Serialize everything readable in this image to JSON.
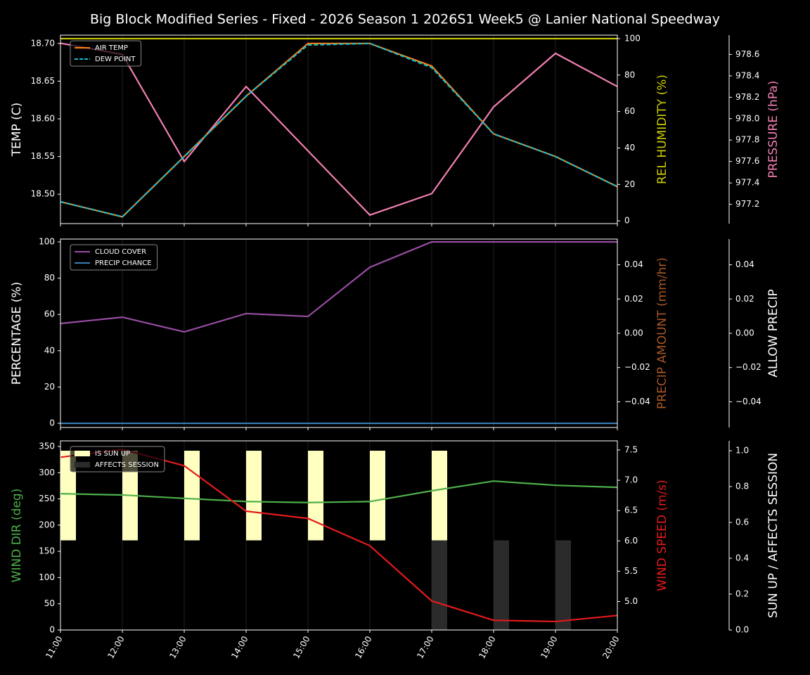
{
  "chart_data": [
    {
      "type": "line",
      "title": "Big Block Modified Series - Fixed - 2026 Season 1 2026S1 Week5 @ Lanier National Speedway",
      "ylabel": "TEMP (C)",
      "ylim": [
        18.461,
        18.711
      ],
      "yticks": [
        {
          "value": 18.5,
          "label": "18.50"
        },
        18.55,
        {
          "value": 18.6,
          "label": "18.60"
        },
        18.65,
        {
          "value": 18.7,
          "label": "18.70"
        }
      ],
      "y2label": "REL HUMIDITY (%)",
      "y2color": "#cccc00",
      "y2lim": [
        -1.5,
        101.9
      ],
      "y2ticks": [
        0,
        20,
        40,
        60,
        80,
        100
      ],
      "y3label": "PRESSURE (hPa)",
      "y3color": "#f27fb2",
      "y3lim": [
        977.02,
        978.78
      ],
      "y3ticks": [
        977.2,
        977.4,
        977.6,
        977.8,
        {
          "value": 978,
          "label": "978.0"
        },
        978.2,
        978.4,
        978.6
      ],
      "grid": true,
      "legend": "upper left",
      "series": [
        {
          "color": "#cccc00",
          "axis": "y2",
          "values": [
            100,
            100,
            100,
            100,
            100,
            100,
            100,
            100,
            100,
            100
          ]
        },
        {
          "color": "#f27fb2",
          "axis": "y3",
          "values": [
            978.705,
            978.6,
            977.6,
            978.3,
            977.7,
            977.1,
            977.3,
            978.11,
            978.61,
            978.3
          ]
        },
        {
          "name": "AIR TEMP",
          "color": "#ff7f0e",
          "values": [
            18.49,
            18.47,
            18.55,
            18.63,
            18.7,
            18.7,
            18.67,
            18.58,
            18.55,
            18.51
          ]
        },
        {
          "name": "DEW POINT",
          "color": "#17becf",
          "dash": true,
          "values": [
            18.49,
            18.47,
            18.55,
            18.63,
            18.698,
            18.7,
            18.668,
            18.58,
            18.55,
            18.51
          ]
        }
      ]
    },
    {
      "type": "line",
      "ylabel": "PERCENTAGE (%)",
      "ylim": [
        -2.3,
        101.55
      ],
      "yticks": [
        0,
        20,
        40,
        60,
        80,
        100
      ],
      "y2label": "PRECIP AMOUNT (mm/hr)",
      "y2color": "#a65628",
      "y2lim": [
        -0.055,
        0.055
      ],
      "y2ticks": [
        {
          "value": -0.04,
          "label": "−0.04"
        },
        {
          "value": -0.02,
          "label": "−0.02"
        },
        {
          "value": 0,
          "label": "0.00"
        },
        0.02,
        0.04
      ],
      "y3label": "ALLOW PRECIP",
      "y3color": "#ffffff",
      "y3lim": [
        -0.055,
        0.055
      ],
      "y3ticks": [
        {
          "value": -0.04,
          "label": "−0.04"
        },
        {
          "value": -0.02,
          "label": "−0.02"
        },
        {
          "value": 0,
          "label": "0.00"
        },
        0.02,
        0.04
      ],
      "grid": true,
      "legend": "upper left",
      "series": [
        {
          "name": "CLOUD COVER",
          "color": "#984ea3",
          "values": [
            55,
            58.5,
            50.4,
            60.5,
            58.9,
            86,
            100,
            100,
            100,
            100
          ]
        },
        {
          "name": "PRECIP CHANCE",
          "color": "#377eb8",
          "values": [
            0,
            0,
            0,
            0,
            0,
            0,
            0,
            0,
            0,
            0
          ]
        }
      ]
    },
    {
      "type": "line",
      "categories": [
        "11:00",
        "12:00",
        "13:00",
        "14:00",
        "15:00",
        "16:00",
        "17:00",
        "18:00",
        "19:00",
        "20:00"
      ],
      "ylabel": "WIND DIR (deg)",
      "ycolor": "#4daf4a",
      "ylim": [
        0,
        360.7
      ],
      "yticks": [
        0,
        50,
        100,
        150,
        200,
        250,
        300,
        350
      ],
      "y2label": "WIND SPEED (m/s)",
      "y2color": "#e41a1c",
      "y2lim": [
        4.53,
        7.65
      ],
      "y2ticks": [
        {
          "value": 5,
          "label": "5.0"
        },
        5.5,
        {
          "value": 6,
          "label": "6.0"
        },
        6.5,
        {
          "value": 7,
          "label": "7.0"
        },
        7.5
      ],
      "y3label": "SUN UP / AFFECTS SESSION",
      "y3color": "#ffffff",
      "y3lim": [
        0,
        1.055
      ],
      "y3ticks": [
        {
          "value": 0,
          "label": "0.0"
        },
        0.2,
        0.4,
        0.6,
        0.8,
        {
          "value": 1,
          "label": "1.0"
        }
      ],
      "grid": true,
      "legend": "upper left",
      "series": [
        {
          "name": "IS SUN UP",
          "type": "bar",
          "axis": "y3",
          "color": "#ffffc0",
          "bottom": 0.5,
          "values": [
            0.5,
            0.5,
            0.5,
            0.5,
            0.5,
            0.5,
            0.5,
            0,
            0,
            0
          ]
        },
        {
          "name": "AFFECTS SESSION",
          "type": "bar",
          "axis": "y3",
          "color": "#2b2b2b",
          "bottom": 0,
          "values": [
            0,
            0,
            0,
            0,
            0,
            0,
            0.5,
            0.5,
            0.5,
            0
          ]
        },
        {
          "color": "#4daf4a",
          "values": [
            260,
            257.5,
            251,
            245,
            243,
            245,
            265.5,
            284,
            276,
            272
          ]
        },
        {
          "color": "#e41a1c",
          "axis": "y2",
          "values": [
            7.38,
            7.51,
            7.24,
            6.49,
            6.37,
            5.92,
            5.01,
            4.69,
            4.67,
            4.77
          ]
        }
      ]
    }
  ]
}
